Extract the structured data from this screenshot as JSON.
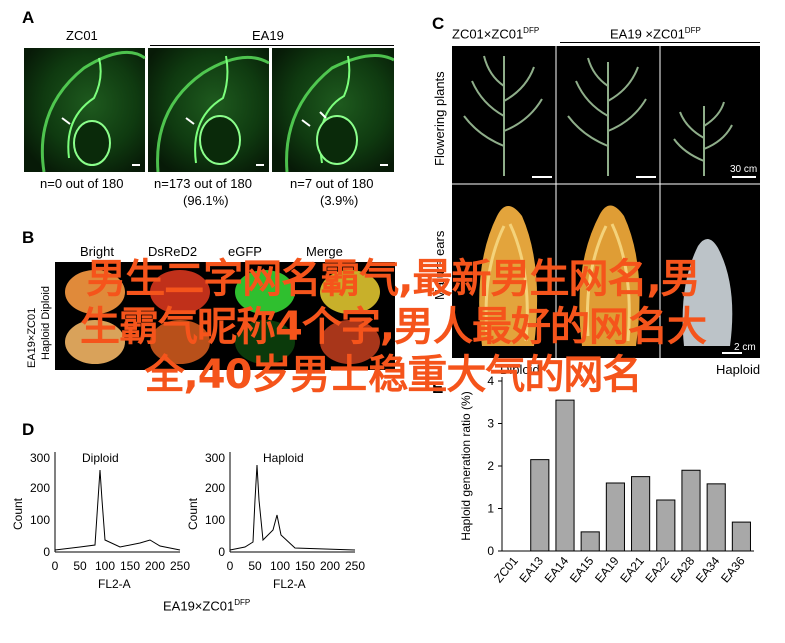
{
  "panelA": {
    "label": "A",
    "group_left": "ZC01",
    "group_right": "EA19",
    "captions": [
      {
        "line1": "n=0 out of 180",
        "line2": ""
      },
      {
        "line1": "n=173 out of 180",
        "line2": "(96.1%)"
      },
      {
        "line1": "n=7 out of 180",
        "line2": "(3.9%)"
      }
    ]
  },
  "panelB": {
    "label": "B",
    "columns": [
      "Bright",
      "DsReD2",
      "eGFP",
      "Merge"
    ],
    "row_labels": [
      "EA19×ZC01",
      "Haploid Diploid"
    ]
  },
  "panelC": {
    "label": "C",
    "col1_title": "ZC01×ZC01",
    "col1_sup": "DFP",
    "col2_title": "EA19 ×ZC01",
    "col2_sup": "DFP",
    "row1_label": "Flowering plants",
    "row2_label": "Mature ears",
    "scale1": "30 cm",
    "scale2": "2 cm",
    "bottom_labels": [
      "Diploid",
      "Haploid"
    ]
  },
  "panelD": {
    "label": "D",
    "left_title": "Diploid",
    "right_title": "Haploid",
    "ylabel": "Count",
    "xlabel": "FL2-A",
    "y_ticks": [
      "0",
      "100",
      "200",
      "300"
    ],
    "x_ticks": [
      "0",
      "50",
      "100",
      "150",
      "200",
      "250"
    ],
    "caption": "EA19×ZC01",
    "caption_sup": "DFP"
  },
  "panelE": {
    "label": "E"
  },
  "chart_data": {
    "type": "bar",
    "categories": [
      "ZC01",
      "EA13",
      "EA14",
      "EA15",
      "EA19",
      "EA21",
      "EA22",
      "EA28",
      "EA34",
      "EA36"
    ],
    "values": [
      0,
      2.15,
      3.55,
      0.45,
      1.6,
      1.75,
      1.2,
      1.9,
      1.58,
      0.68
    ],
    "title": "",
    "xlabel": "",
    "ylabel": "Haploid generation ratio (%)",
    "y_ticks": [
      "0",
      "1",
      "2",
      "3",
      "4"
    ],
    "ylim": [
      0,
      4
    ],
    "bar_color": "#a8a8a8",
    "grid": false
  },
  "overlay": {
    "line1": "男生二字网名霸气,最新男生网名,男",
    "line2": "生霸气昵称4个字,男人最好的网名大",
    "line3": "全,40岁男士稳重大气的网名",
    "color": "#f5541b"
  }
}
